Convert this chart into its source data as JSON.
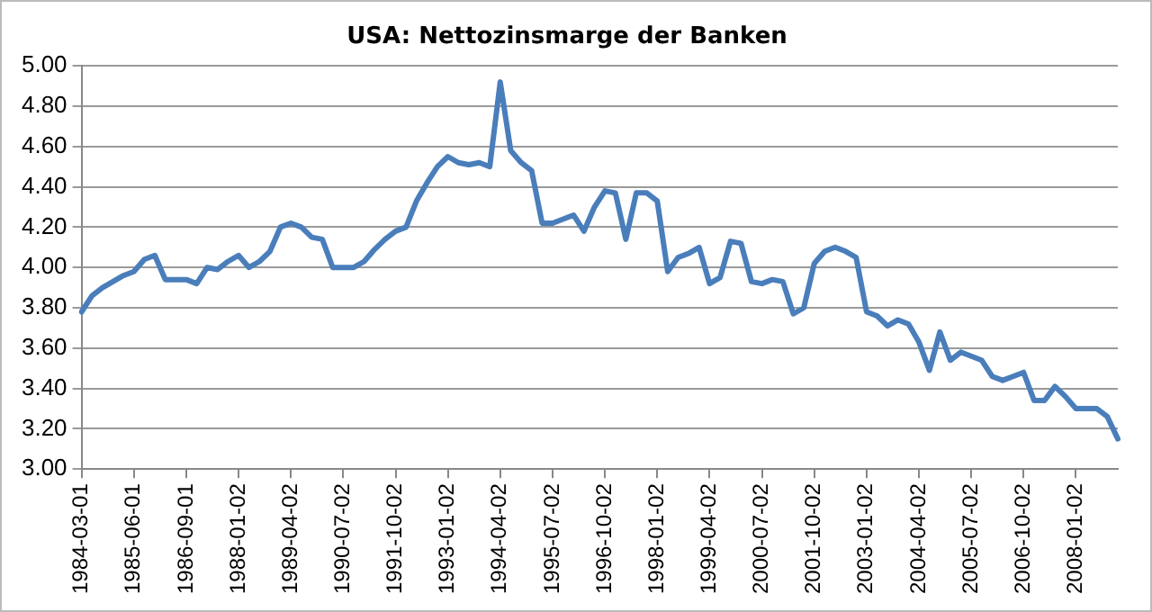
{
  "chart_data": {
    "type": "line",
    "title": "USA: Nettozinsmarge der Banken",
    "categories": [
      "1984-03-01",
      null,
      null,
      null,
      null,
      "1985-06-01",
      null,
      null,
      null,
      null,
      "1986-09-01",
      null,
      null,
      null,
      null,
      "1988-01-02",
      null,
      null,
      null,
      null,
      "1989-04-02",
      null,
      null,
      null,
      null,
      "1990-07-02",
      null,
      null,
      null,
      null,
      "1991-10-02",
      null,
      null,
      null,
      null,
      "1993-01-02",
      null,
      null,
      null,
      null,
      "1994-04-02",
      null,
      null,
      null,
      null,
      "1995-07-02",
      null,
      null,
      null,
      null,
      "1996-10-02",
      null,
      null,
      null,
      null,
      "1998-01-02",
      null,
      null,
      null,
      null,
      "1999-04-02",
      null,
      null,
      null,
      null,
      "2000-07-02",
      null,
      null,
      null,
      null,
      "2001-10-02",
      null,
      null,
      null,
      null,
      "2003-01-02",
      null,
      null,
      null,
      null,
      "2004-04-02",
      null,
      null,
      null,
      null,
      "2005-07-02",
      null,
      null,
      null,
      null,
      "2006-10-02",
      null,
      null,
      null,
      null,
      "2008-01-02",
      null,
      null,
      null,
      null
    ],
    "series": [
      {
        "color": "#4a7ebb",
        "values": [
          3.78,
          3.86,
          3.9,
          3.93,
          3.96,
          3.98,
          4.04,
          4.06,
          3.94,
          3.94,
          3.94,
          3.92,
          4.0,
          3.99,
          4.03,
          4.06,
          4.0,
          4.03,
          4.08,
          4.2,
          4.22,
          4.2,
          4.15,
          4.14,
          4.0,
          4.0,
          4.0,
          4.03,
          4.09,
          4.14,
          4.18,
          4.2,
          4.33,
          4.42,
          4.5,
          4.55,
          4.52,
          4.51,
          4.52,
          4.5,
          4.92,
          4.58,
          4.52,
          4.48,
          4.22,
          4.22,
          4.24,
          4.26,
          4.18,
          4.3,
          4.38,
          4.37,
          4.14,
          4.37,
          4.37,
          4.33,
          3.98,
          4.05,
          4.07,
          4.1,
          3.92,
          3.95,
          4.13,
          4.12,
          3.93,
          3.92,
          3.94,
          3.93,
          3.77,
          3.8,
          4.02,
          4.08,
          4.1,
          4.08,
          4.05,
          3.78,
          3.76,
          3.71,
          3.74,
          3.72,
          3.63,
          3.49,
          3.68,
          3.54,
          3.58,
          3.56,
          3.54,
          3.46,
          3.44,
          3.46,
          3.48,
          3.34,
          3.34,
          3.41,
          3.36,
          3.3,
          3.3,
          3.3,
          3.26,
          3.15
        ]
      }
    ],
    "ylim": [
      3,
      5
    ],
    "yticks": [
      {
        "value": 3,
        "label": "3.00"
      },
      {
        "value": 3.2,
        "label": "3.20"
      },
      {
        "value": 3.4,
        "label": "3.40"
      },
      {
        "value": 3.6,
        "label": "3.60"
      },
      {
        "value": 3.8,
        "label": "3.80"
      },
      {
        "value": 4,
        "label": "4.00"
      },
      {
        "value": 4.2,
        "label": "4.20"
      },
      {
        "value": 4.4,
        "label": "4.40"
      },
      {
        "value": 4.6,
        "label": "4.60"
      },
      {
        "value": 4.8,
        "label": "4.80"
      },
      {
        "value": 5,
        "label": "5.00"
      }
    ],
    "grid": "y",
    "legend": false,
    "marker": "none",
    "line_style": "solid"
  }
}
